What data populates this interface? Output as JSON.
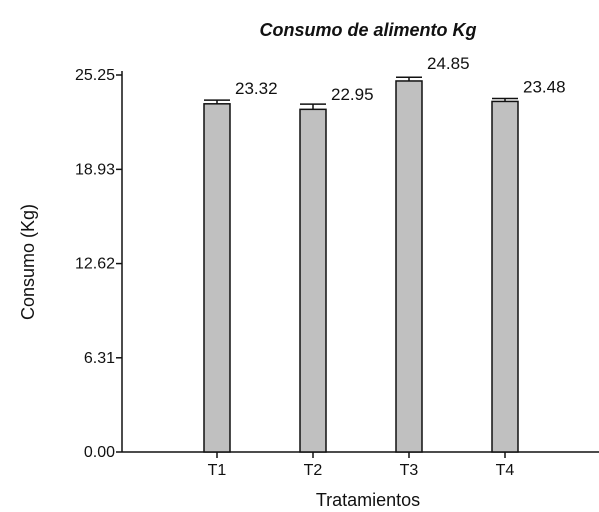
{
  "chart_data": {
    "type": "bar",
    "title": "Consumo de alimento Kg",
    "xlabel": "Tratamientos",
    "ylabel": "Consumo (Kg)",
    "categories": [
      "T1",
      "T2",
      "T3",
      "T4"
    ],
    "values": [
      23.32,
      22.95,
      24.85,
      23.48
    ],
    "data_labels": [
      "23.32",
      "22.95",
      "24.85",
      "23.48"
    ],
    "error": [
      0.25,
      0.35,
      0.25,
      0.2
    ],
    "ylim": [
      0,
      25.25
    ],
    "yticks": [
      0,
      6.31,
      12.62,
      18.93,
      25.25
    ],
    "ytick_labels": [
      "0.00",
      "6.31",
      "12.62",
      "18.93",
      "25.25"
    ],
    "grid": false,
    "bar_color": "#c0c0c0",
    "edge_color": "#111111"
  }
}
